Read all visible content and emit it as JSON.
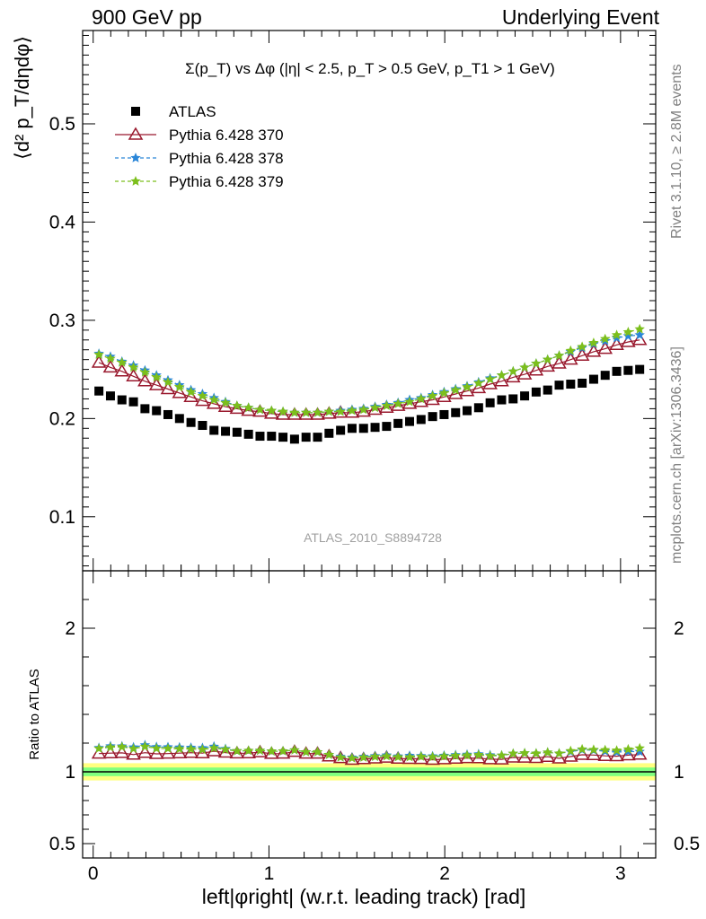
{
  "header": {
    "left": "900 GeV pp",
    "right": "Underlying Event"
  },
  "side_labels": {
    "rivet": "Rivet 3.1.10, ≥ 2.8M events",
    "mcplots": "mcplots.cern.ch [arXiv:1306.3436]"
  },
  "colors": {
    "atlas": "#000000",
    "pythia_370": "#99182d",
    "pythia_378": "#2a86d8",
    "pythia_379": "#7cbf1c",
    "band_inner": "#7fff7f",
    "band_outer": "#ffff80"
  },
  "chart_data": [
    {
      "type": "scatter",
      "panel": "main",
      "title": "Σ(p_T) vs Δφ (|η| < 2.5, p_T > 0.5 GeV, p_T1 > 1 GeV)",
      "watermark": "ATLAS_2010_S8894728",
      "ylabel": "⟨d² p_T/dηdφ⟩",
      "xlabel": "left|φright| (w.r.t. leading track) [rad]",
      "xlim": [
        -0.06,
        3.2
      ],
      "ylim": [
        0.045,
        0.595
      ],
      "yticks": [
        0.1,
        0.2,
        0.3,
        0.4,
        0.5
      ],
      "xticks": [
        0,
        1,
        2,
        3
      ],
      "legend": "top-left",
      "x": [
        0.0327,
        0.0982,
        0.1636,
        0.2291,
        0.2945,
        0.36,
        0.4254,
        0.4909,
        0.5563,
        0.6218,
        0.6872,
        0.7527,
        0.8181,
        0.8836,
        0.949,
        1.0145,
        1.0799,
        1.1454,
        1.2108,
        1.2763,
        1.3417,
        1.4072,
        1.4726,
        1.5381,
        1.6035,
        1.669,
        1.7344,
        1.7999,
        1.8653,
        1.9308,
        1.9962,
        2.0617,
        2.1271,
        2.1926,
        2.258,
        2.3235,
        2.3889,
        2.4544,
        2.5198,
        2.5853,
        2.6507,
        2.7162,
        2.7816,
        2.8471,
        2.9125,
        2.978,
        3.0434,
        3.1089
      ],
      "series": [
        {
          "name": "ATLAS",
          "marker": "square",
          "values": [
            0.228,
            0.223,
            0.219,
            0.217,
            0.21,
            0.208,
            0.204,
            0.2,
            0.196,
            0.193,
            0.188,
            0.187,
            0.186,
            0.184,
            0.182,
            0.182,
            0.181,
            0.179,
            0.181,
            0.181,
            0.185,
            0.188,
            0.19,
            0.19,
            0.191,
            0.192,
            0.195,
            0.197,
            0.199,
            0.202,
            0.204,
            0.206,
            0.208,
            0.211,
            0.216,
            0.219,
            0.22,
            0.223,
            0.227,
            0.229,
            0.234,
            0.235,
            0.236,
            0.24,
            0.244,
            0.248,
            0.249,
            0.25
          ]
        },
        {
          "name": "Pythia 6.428 370",
          "marker": "open-triangle",
          "values": [
            0.257,
            0.252,
            0.248,
            0.243,
            0.238,
            0.234,
            0.23,
            0.226,
            0.222,
            0.218,
            0.215,
            0.212,
            0.21,
            0.208,
            0.207,
            0.205,
            0.204,
            0.204,
            0.204,
            0.204,
            0.205,
            0.206,
            0.206,
            0.207,
            0.209,
            0.211,
            0.213,
            0.215,
            0.217,
            0.219,
            0.222,
            0.225,
            0.228,
            0.231,
            0.235,
            0.238,
            0.242,
            0.245,
            0.249,
            0.253,
            0.256,
            0.26,
            0.264,
            0.268,
            0.271,
            0.275,
            0.278,
            0.28
          ]
        },
        {
          "name": "Pythia 6.428 378",
          "marker": "star",
          "values": [
            0.266,
            0.263,
            0.258,
            0.254,
            0.249,
            0.244,
            0.239,
            0.234,
            0.229,
            0.225,
            0.221,
            0.217,
            0.213,
            0.211,
            0.209,
            0.208,
            0.207,
            0.206,
            0.206,
            0.206,
            0.207,
            0.208,
            0.209,
            0.21,
            0.212,
            0.214,
            0.216,
            0.219,
            0.221,
            0.224,
            0.227,
            0.23,
            0.233,
            0.237,
            0.241,
            0.244,
            0.248,
            0.252,
            0.256,
            0.26,
            0.264,
            0.268,
            0.272,
            0.276,
            0.279,
            0.282,
            0.284,
            0.285
          ]
        },
        {
          "name": "Pythia 6.428 379",
          "marker": "star",
          "values": [
            0.265,
            0.261,
            0.257,
            0.252,
            0.247,
            0.242,
            0.237,
            0.232,
            0.227,
            0.223,
            0.219,
            0.216,
            0.213,
            0.211,
            0.209,
            0.208,
            0.207,
            0.206,
            0.206,
            0.206,
            0.207,
            0.207,
            0.208,
            0.209,
            0.211,
            0.213,
            0.215,
            0.217,
            0.22,
            0.223,
            0.226,
            0.229,
            0.232,
            0.236,
            0.24,
            0.244,
            0.248,
            0.252,
            0.256,
            0.26,
            0.264,
            0.269,
            0.273,
            0.277,
            0.281,
            0.285,
            0.288,
            0.291
          ]
        }
      ]
    },
    {
      "type": "scatter",
      "panel": "ratio",
      "ylabel": "Ratio to ATLAS",
      "xlabel": "left|φright| (w.r.t. leading track) [rad]",
      "xlim": [
        -0.06,
        3.2
      ],
      "ylim": [
        0.4,
        2.4
      ],
      "yticks": [
        0.5,
        1,
        2
      ],
      "ytick_labels": [
        "0.5",
        "1",
        "2"
      ],
      "xticks": [
        0,
        1,
        2,
        3
      ],
      "band": {
        "inner": [
          0.97,
          1.03
        ],
        "outer": [
          0.94,
          1.06
        ]
      },
      "x": [
        0.0327,
        0.0982,
        0.1636,
        0.2291,
        0.2945,
        0.36,
        0.4254,
        0.4909,
        0.5563,
        0.6218,
        0.6872,
        0.7527,
        0.8181,
        0.8836,
        0.949,
        1.0145,
        1.0799,
        1.1454,
        1.2108,
        1.2763,
        1.3417,
        1.4072,
        1.4726,
        1.5381,
        1.6035,
        1.669,
        1.7344,
        1.7999,
        1.8653,
        1.9308,
        1.9962,
        2.0617,
        2.1271,
        2.1926,
        2.258,
        2.3235,
        2.3889,
        2.4544,
        2.5198,
        2.5853,
        2.6507,
        2.7162,
        2.7816,
        2.8471,
        2.9125,
        2.978,
        3.0434,
        3.1089
      ],
      "series": [
        {
          "name": "Pythia 6.428 370",
          "marker": "open-triangle",
          "values": [
            1.127,
            1.13,
            1.132,
            1.12,
            1.133,
            1.125,
            1.127,
            1.13,
            1.133,
            1.13,
            1.144,
            1.134,
            1.129,
            1.13,
            1.137,
            1.126,
            1.127,
            1.14,
            1.127,
            1.127,
            1.108,
            1.096,
            1.084,
            1.089,
            1.094,
            1.099,
            1.092,
            1.091,
            1.09,
            1.084,
            1.088,
            1.092,
            1.096,
            1.095,
            1.088,
            1.087,
            1.1,
            1.099,
            1.097,
            1.105,
            1.094,
            1.106,
            1.119,
            1.117,
            1.111,
            1.109,
            1.116,
            1.12
          ]
        },
        {
          "name": "Pythia 6.428 378",
          "marker": "star",
          "values": [
            1.167,
            1.179,
            1.178,
            1.171,
            1.186,
            1.173,
            1.172,
            1.17,
            1.168,
            1.166,
            1.176,
            1.16,
            1.145,
            1.147,
            1.148,
            1.143,
            1.144,
            1.151,
            1.138,
            1.138,
            1.119,
            1.106,
            1.1,
            1.105,
            1.11,
            1.115,
            1.108,
            1.112,
            1.111,
            1.109,
            1.113,
            1.117,
            1.12,
            1.123,
            1.116,
            1.114,
            1.127,
            1.13,
            1.128,
            1.135,
            1.128,
            1.14,
            1.153,
            1.15,
            1.143,
            1.137,
            1.141,
            1.14
          ]
        },
        {
          "name": "Pythia 6.428 379",
          "marker": "star",
          "values": [
            1.162,
            1.171,
            1.174,
            1.161,
            1.176,
            1.163,
            1.162,
            1.16,
            1.158,
            1.155,
            1.165,
            1.155,
            1.145,
            1.147,
            1.148,
            1.143,
            1.144,
            1.151,
            1.138,
            1.138,
            1.119,
            1.101,
            1.095,
            1.1,
            1.105,
            1.109,
            1.103,
            1.102,
            1.106,
            1.104,
            1.108,
            1.112,
            1.115,
            1.118,
            1.111,
            1.114,
            1.127,
            1.13,
            1.128,
            1.135,
            1.128,
            1.145,
            1.157,
            1.154,
            1.152,
            1.149,
            1.157,
            1.164
          ]
        }
      ]
    }
  ]
}
